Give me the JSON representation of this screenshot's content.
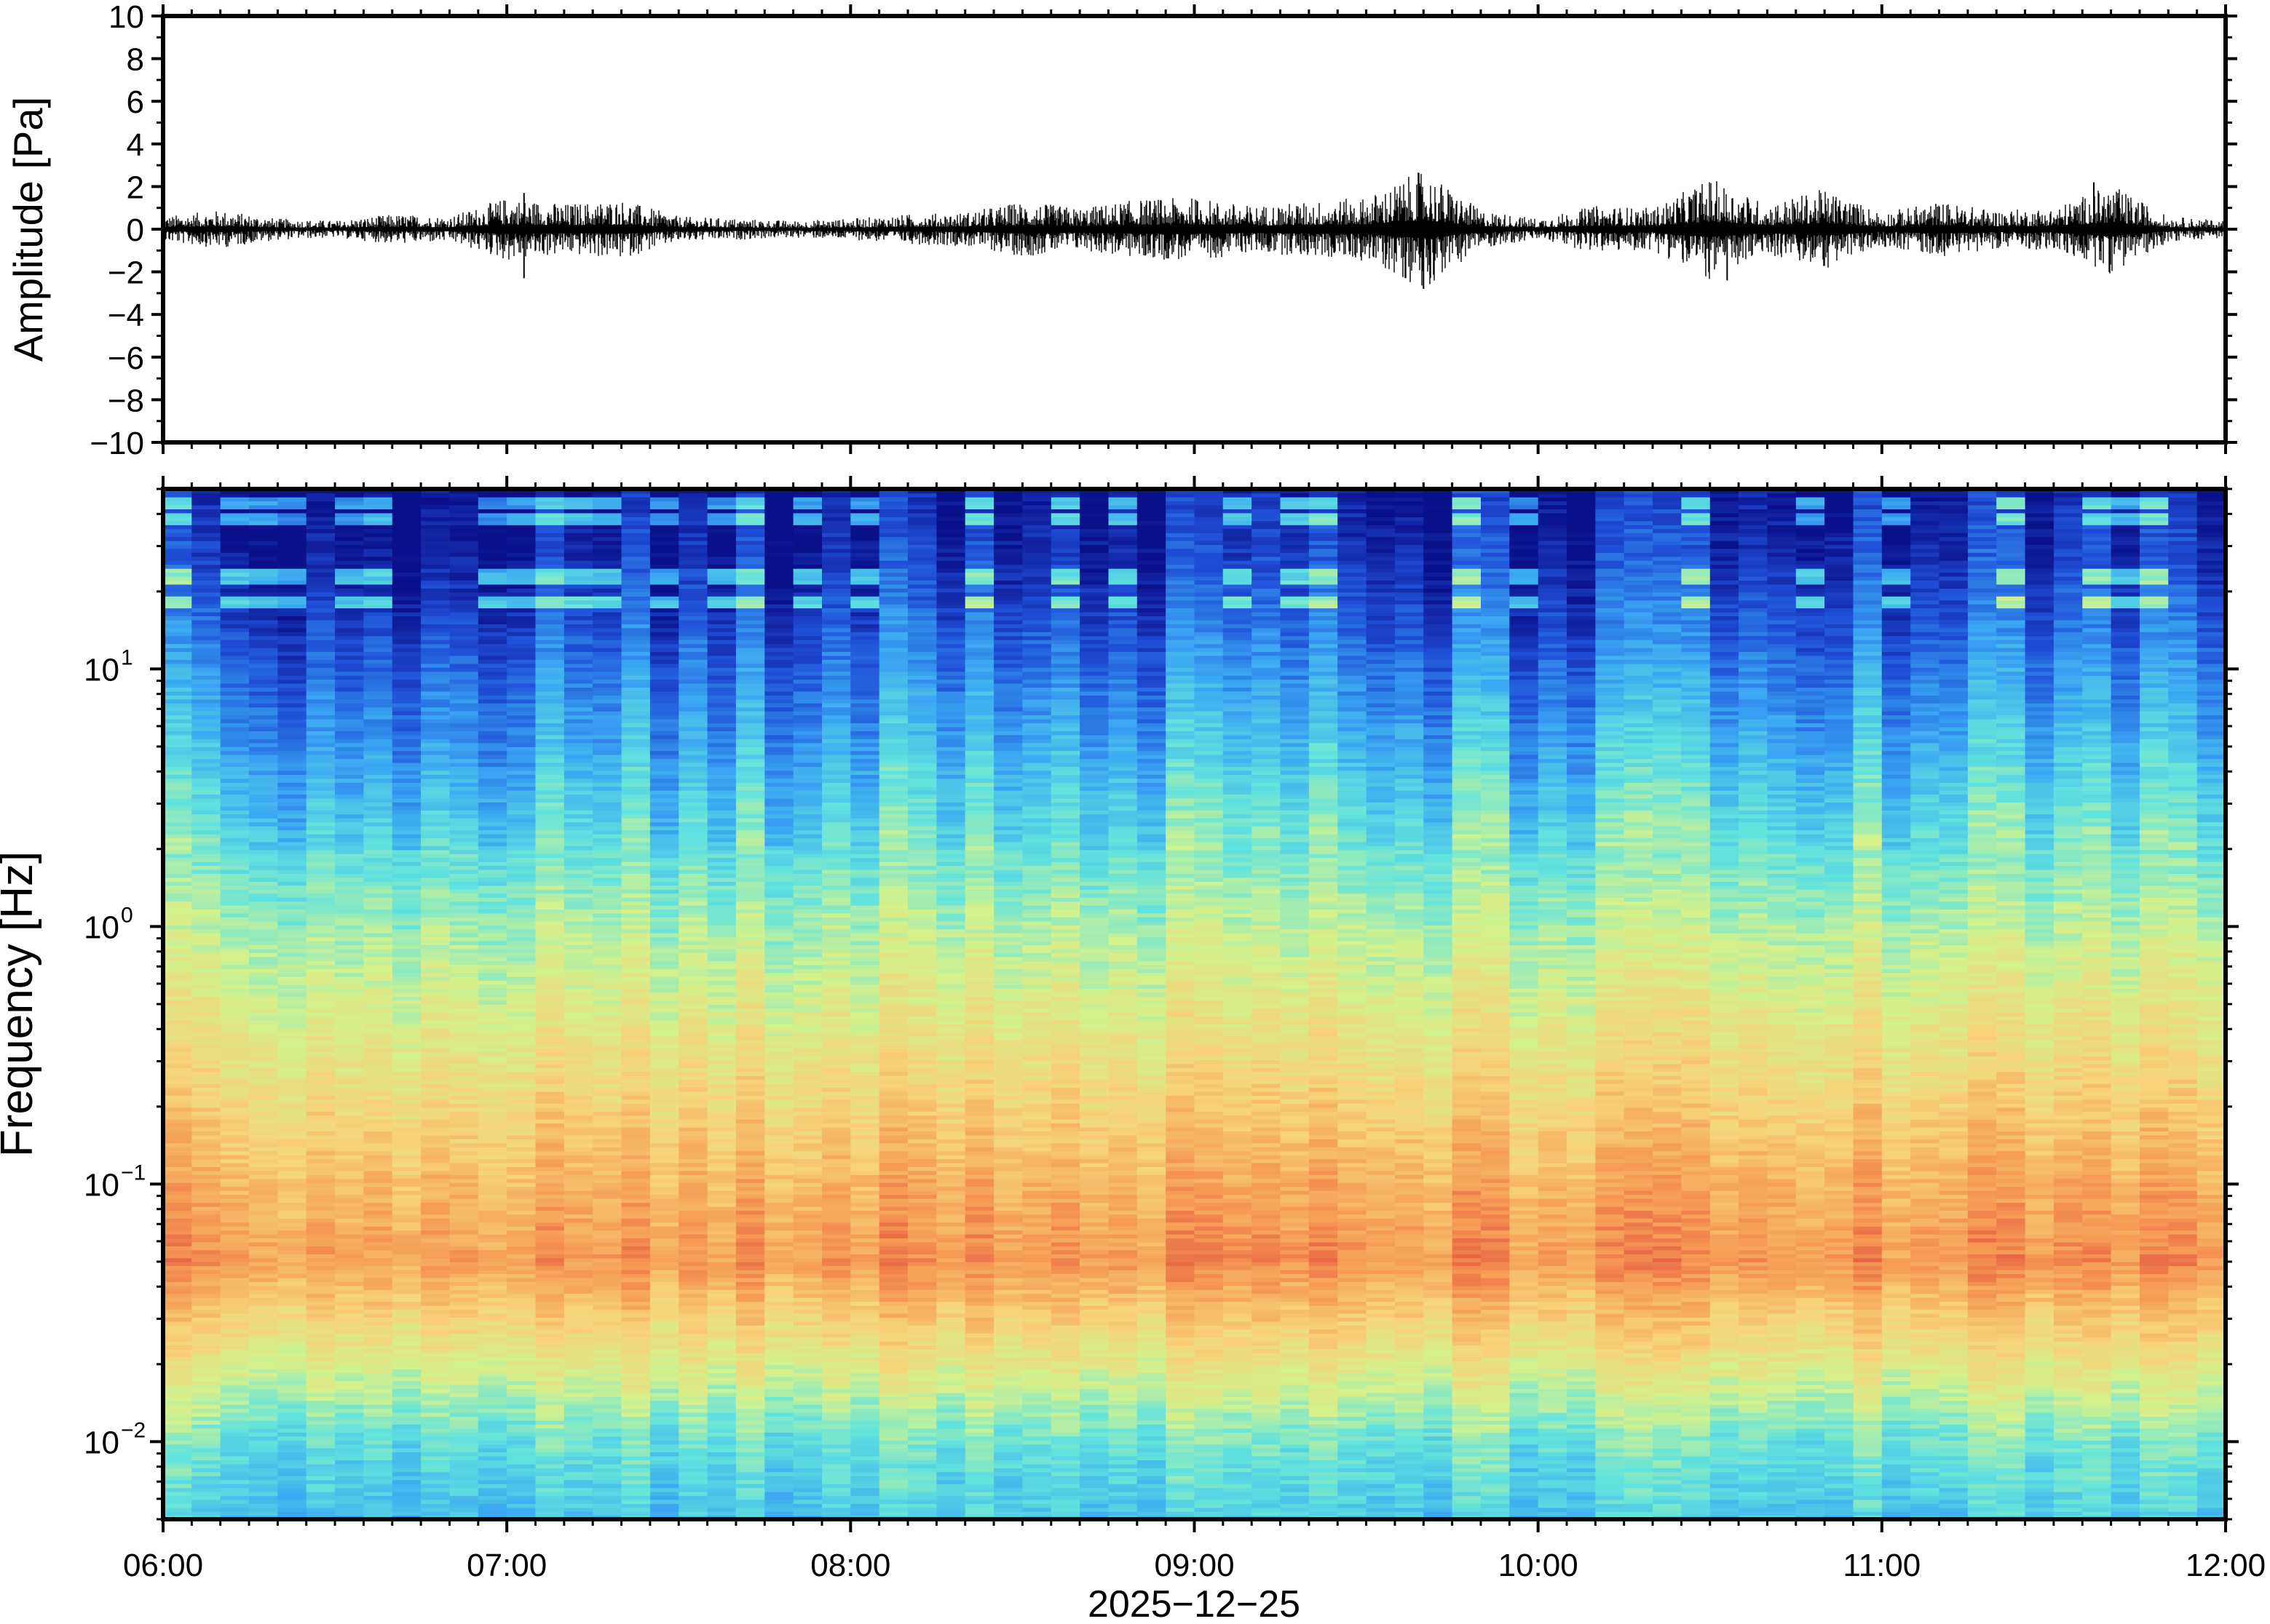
{
  "chart_data": [
    {
      "type": "line",
      "ylabel": "Amplitude [Pa]",
      "ylim": [
        -10,
        10
      ],
      "y_ticks": [
        {
          "value": 10,
          "label": "10"
        },
        {
          "value": 8,
          "label": "8"
        },
        {
          "value": 6,
          "label": "6"
        },
        {
          "value": 4,
          "label": "4"
        },
        {
          "value": 2,
          "label": "2"
        },
        {
          "value": 0,
          "label": "0"
        },
        {
          "value": -2,
          "label": "−2"
        },
        {
          "value": -4,
          "label": "−4"
        },
        {
          "value": -6,
          "label": "−6"
        },
        {
          "value": -8,
          "label": "−8"
        },
        {
          "value": -10,
          "label": "−10"
        }
      ],
      "xlim": [
        "06:00",
        "12:00"
      ],
      "series": [
        {
          "color": "#000000",
          "x": [
            "06:00",
            "06:10",
            "06:20",
            "06:30",
            "06:40",
            "06:50",
            "07:00",
            "07:10",
            "07:20",
            "07:30",
            "07:40",
            "07:50",
            "08:00",
            "08:10",
            "08:20",
            "08:30",
            "08:40",
            "08:50",
            "09:00",
            "09:10",
            "09:20",
            "09:30",
            "09:40",
            "09:50",
            "10:00",
            "10:10",
            "10:20",
            "10:30",
            "10:40",
            "10:50",
            "11:00",
            "11:10",
            "11:20",
            "11:30",
            "11:40",
            "11:50",
            "12:00"
          ],
          "envelope": [
            0.6,
            0.9,
            0.5,
            0.4,
            0.7,
            0.6,
            1.5,
            1.2,
            1.4,
            0.6,
            0.5,
            0.4,
            0.5,
            0.7,
            0.8,
            1.3,
            1.0,
            1.4,
            1.5,
            1.1,
            1.3,
            1.5,
            2.8,
            0.9,
            0.5,
            1.1,
            1.0,
            2.4,
            1.2,
            1.9,
            0.8,
            1.3,
            0.9,
            1.0,
            2.1,
            0.6,
            0.4
          ],
          "peaks": [
            {
              "x": "07:03",
              "y": 1.7
            },
            {
              "x": "07:03",
              "y": -2.3
            },
            {
              "x": "09:40",
              "y": -2.8
            },
            {
              "x": "10:33",
              "y": -2.4
            },
            {
              "x": "11:37",
              "y": 2.2
            }
          ]
        }
      ]
    },
    {
      "type": "heatmap",
      "ylabel": "Frequency [Hz]",
      "xlabel": "2025−12−25",
      "yscale": "log",
      "ylim": [
        0.005,
        50
      ],
      "y_ticks": [
        {
          "value": 10,
          "base": "10",
          "exp": "1"
        },
        {
          "value": 1,
          "base": "10",
          "exp": "0"
        },
        {
          "value": 0.1,
          "base": "10",
          "exp": "−1"
        },
        {
          "value": 0.01,
          "base": "10",
          "exp": "−2"
        }
      ],
      "xlim": [
        "06:00",
        "12:00"
      ],
      "x_ticks": [
        "06:00",
        "07:00",
        "08:00",
        "09:00",
        "10:00",
        "11:00",
        "12:00"
      ],
      "colormap": [
        "#0a0f8a",
        "#1f4fd8",
        "#3aa6f2",
        "#62e3de",
        "#d4f28d",
        "#f7d27a",
        "#f59a55",
        "#e0473d"
      ],
      "tonal_lines_hz": [
        18,
        23,
        38,
        44
      ]
    }
  ]
}
